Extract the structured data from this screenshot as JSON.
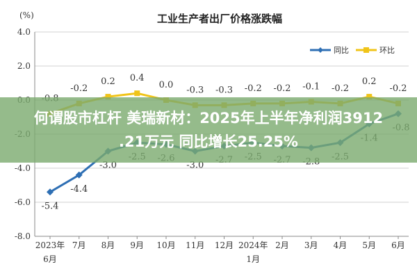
{
  "overlay": {
    "line1": "何谓股市杠杆 美瑞新材：2025年上半年净利润3912",
    "line2": ".21万元 同比增长25.25%"
  },
  "chart_data": {
    "type": "line",
    "title": "工业生产者出厂价格涨跌幅",
    "unit_label": "(%)",
    "categories": [
      [
        "2023年",
        "6月"
      ],
      [
        "7月"
      ],
      [
        "8月"
      ],
      [
        "9月"
      ],
      [
        "10月"
      ],
      [
        "11月"
      ],
      [
        "12月"
      ],
      [
        "2024年",
        "1月"
      ],
      [
        "2月"
      ],
      [
        "3月"
      ],
      [
        "4月"
      ],
      [
        "5月"
      ],
      [
        "6月"
      ]
    ],
    "yticks": [
      "4.0",
      "2.0",
      "0.0",
      "-2.0",
      "-4.0",
      "-6.0",
      "-8.0"
    ],
    "ylim": [
      -8,
      4
    ],
    "legend_position": "top-right",
    "series": [
      {
        "name": "同比",
        "color": "#2e6fb4",
        "values": [
          -5.4,
          -4.4,
          -3.0,
          -2.5,
          -2.6,
          -3.0,
          -2.7,
          -2.5,
          -2.7,
          -2.8,
          -2.5,
          -1.4,
          -0.8
        ],
        "labels": [
          "-5.4",
          "-4.4",
          "-3.0",
          "-2.5",
          "-2.6",
          "-3.0",
          "-2.7",
          "-2.5",
          "-2.7",
          "-2.8",
          "-2.5",
          "-1.4",
          "-0.8"
        ]
      },
      {
        "name": "环比",
        "color": "#f0c419",
        "values": [
          -0.8,
          -0.2,
          0.2,
          0.4,
          0.0,
          -0.3,
          -0.3,
          -0.2,
          -0.2,
          -0.1,
          -0.2,
          0.2,
          -0.2
        ],
        "labels": [
          "-0.8",
          "-0.2",
          "0.2",
          "0.4",
          "0.0",
          "-0.3",
          "-0.3",
          "-0.2",
          "-0.2",
          "-0.1",
          "-0.2",
          "0.2",
          "-0.2"
        ]
      }
    ]
  }
}
